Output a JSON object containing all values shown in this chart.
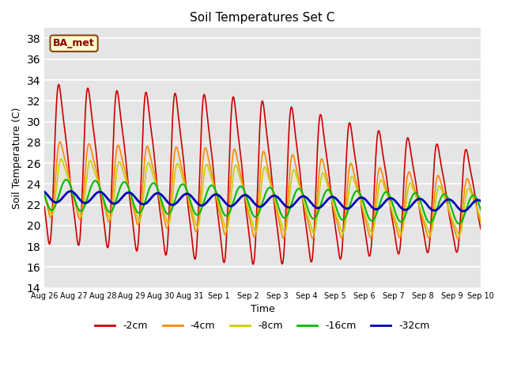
{
  "title": "Soil Temperatures Set C",
  "xlabel": "Time",
  "ylabel": "Soil Temperature (C)",
  "ylim": [
    14,
    39
  ],
  "yticks": [
    14,
    16,
    18,
    20,
    22,
    24,
    26,
    28,
    30,
    32,
    34,
    36,
    38
  ],
  "series_labels": [
    "-2cm",
    "-4cm",
    "-8cm",
    "-16cm",
    "-32cm"
  ],
  "series_colors": [
    "#cc0000",
    "#ff8800",
    "#cccc00",
    "#00bb00",
    "#0000bb"
  ],
  "series_linewidths": [
    1.2,
    1.2,
    1.2,
    1.5,
    2.0
  ],
  "annotation_text": "BA_met",
  "background_color": "#e5e5e5",
  "n_days": 15,
  "points_per_day": 144,
  "day_labels": [
    "Aug 26",
    "Aug 27",
    "Aug 28",
    "Aug 29",
    "Aug 30",
    "Aug 31",
    "Sep 1",
    "Sep 2",
    "Sep 3",
    "Sep 4",
    "Sep 5",
    "Sep 6",
    "Sep 7",
    "Sep 8",
    "Sep 9",
    "Sep 10"
  ]
}
